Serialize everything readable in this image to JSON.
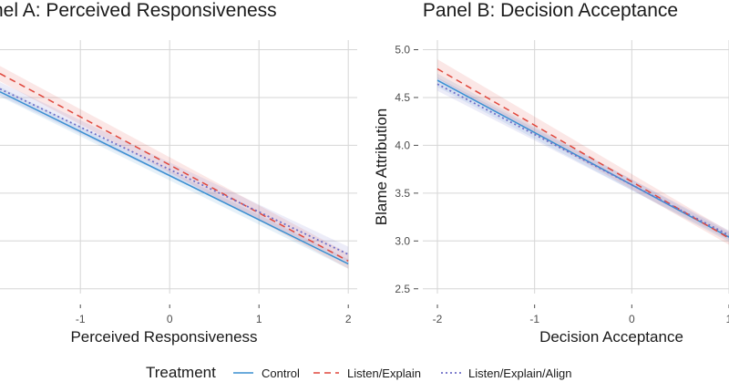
{
  "colors": {
    "control": "#3a8fd1",
    "listen_explain": "#e0473c",
    "listen_explain_align": "#6f6fc7",
    "grid": "#d6d6d6",
    "text": "#1a1a1a",
    "tick_text": "#4d4d4d"
  },
  "legend": {
    "title": "Treatment",
    "items": [
      {
        "key": "control",
        "label": "Control",
        "dash": "solid"
      },
      {
        "key": "listen_explain",
        "label": "Listen/Explain",
        "dash": "dashed"
      },
      {
        "key": "listen_explain_align",
        "label": "Listen/Explain/Align",
        "dash": "dotted"
      }
    ]
  },
  "chart_data": [
    {
      "type": "line",
      "title": "nel A: Perceived Responsiveness",
      "xlabel": "Perceived Responsiveness",
      "ylabel": "",
      "xlim": [
        -1.9,
        2.1
      ],
      "ylim": [
        2.45,
        5.1
      ],
      "x_ticks": [
        -1,
        0,
        1,
        2
      ],
      "x_tick_labels": [
        "-1",
        "0",
        "1",
        "2"
      ],
      "y_ticks": [
        2.5,
        3.0,
        3.5,
        4.0,
        4.5,
        5.0
      ],
      "y_tick_labels": [],
      "grid": true,
      "series": [
        {
          "name": "Control",
          "key": "control",
          "x": [
            -1.9,
            2.0
          ],
          "y": [
            4.56,
            2.76
          ],
          "ci": [
            0.05,
            0.05
          ]
        },
        {
          "name": "Listen/Explain",
          "key": "listen_explain",
          "x": [
            -1.9,
            2.0
          ],
          "y": [
            4.75,
            2.79
          ],
          "ci": [
            0.08,
            0.08
          ]
        },
        {
          "name": "Listen/Explain/Align",
          "key": "listen_explain_align",
          "x": [
            -1.9,
            2.0
          ],
          "y": [
            4.59,
            2.86
          ],
          "ci": [
            0.07,
            0.08
          ]
        }
      ]
    },
    {
      "type": "line",
      "title": "Panel B: Decision Acceptance",
      "xlabel": "Decision Acceptance",
      "ylabel": "Blame Attribution",
      "xlim": [
        -2.15,
        1.0
      ],
      "ylim": [
        2.45,
        5.1
      ],
      "x_ticks": [
        -2,
        -1,
        0,
        1
      ],
      "x_tick_labels": [
        "-2",
        "-1",
        "0",
        "1"
      ],
      "y_ticks": [
        2.5,
        3.0,
        3.5,
        4.0,
        4.5,
        5.0
      ],
      "y_tick_labels": [
        "2.5",
        "3.0",
        "3.5",
        "4.0",
        "4.5",
        "5.0"
      ],
      "grid": true,
      "series": [
        {
          "name": "Control",
          "key": "control",
          "x": [
            -2.0,
            1.0
          ],
          "y": [
            4.68,
            3.04
          ],
          "ci": [
            0.07,
            0.05
          ]
        },
        {
          "name": "Listen/Explain",
          "key": "listen_explain",
          "x": [
            -2.0,
            1.0
          ],
          "y": [
            4.8,
            3.03
          ],
          "ci": [
            0.1,
            0.07
          ]
        },
        {
          "name": "Listen/Explain/Align",
          "key": "listen_explain_align",
          "x": [
            -2.0,
            1.0
          ],
          "y": [
            4.64,
            3.06
          ],
          "ci": [
            0.07,
            0.05
          ]
        }
      ]
    }
  ]
}
